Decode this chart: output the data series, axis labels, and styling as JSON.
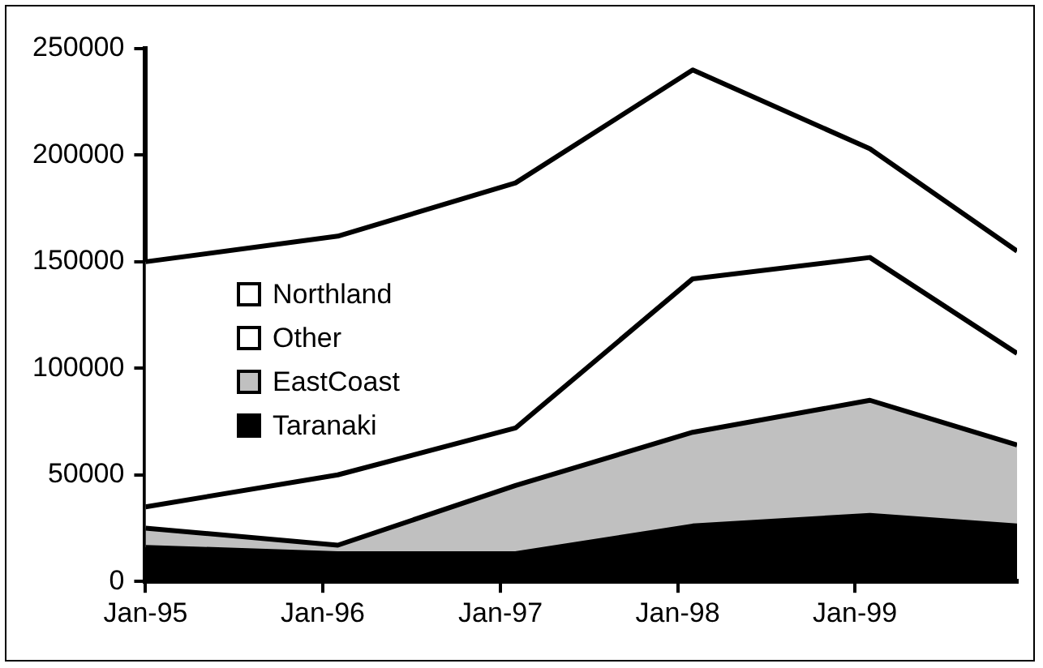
{
  "chart_data": {
    "type": "area",
    "stacked": true,
    "x": [
      "1995-01",
      "1996-02",
      "1997-02",
      "1998-02",
      "1999-02",
      "1999-12"
    ],
    "xlim": [
      "1995-01",
      "1999-12"
    ],
    "xticks": [
      {
        "value": "1995-01",
        "label": "Jan-95"
      },
      {
        "value": "1996-01",
        "label": "Jan-96"
      },
      {
        "value": "1997-01",
        "label": "Jan-97"
      },
      {
        "value": "1998-01",
        "label": "Jan-98"
      },
      {
        "value": "1999-01",
        "label": "Jan-99"
      }
    ],
    "ylim": [
      0,
      250000
    ],
    "yticks": [
      0,
      50000,
      100000,
      150000,
      200000,
      250000
    ],
    "grid": false,
    "legend": "left",
    "line_style": "solid",
    "marker": "none",
    "series": [
      {
        "name": "Taranaki",
        "color": "#000000",
        "values": [
          16000,
          13000,
          13000,
          26000,
          31000,
          26000
        ]
      },
      {
        "name": "EastCoast",
        "color": "#c0c0c0",
        "values": [
          9000,
          4000,
          32000,
          44000,
          54000,
          38000
        ]
      },
      {
        "name": "Other",
        "color": "#ffffff",
        "values": [
          10000,
          33000,
          27000,
          72000,
          67000,
          43000
        ]
      },
      {
        "name": "Northland",
        "color": "#ffffff",
        "values": [
          115000,
          112000,
          115000,
          98000,
          51000,
          48000
        ]
      }
    ]
  }
}
